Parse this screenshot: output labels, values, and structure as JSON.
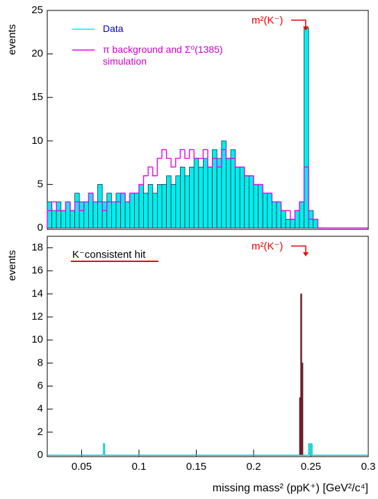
{
  "chart_data": [
    {
      "type": "histogram",
      "ylabel": "events",
      "annotation": "m²(K⁻)",
      "xlim": [
        0.02,
        0.3
      ],
      "ylim": [
        0,
        25
      ],
      "yticks": [
        0,
        5,
        10,
        15,
        20,
        25
      ],
      "bins": [
        0.02,
        0.024,
        0.028,
        0.032,
        0.036,
        0.04,
        0.044,
        0.048,
        0.052,
        0.056,
        0.06,
        0.064,
        0.068,
        0.072,
        0.076,
        0.08,
        0.084,
        0.088,
        0.092,
        0.096,
        0.1,
        0.104,
        0.108,
        0.112,
        0.116,
        0.12,
        0.124,
        0.128,
        0.132,
        0.136,
        0.14,
        0.144,
        0.148,
        0.152,
        0.156,
        0.16,
        0.164,
        0.168,
        0.172,
        0.176,
        0.18,
        0.184,
        0.188,
        0.192,
        0.196,
        0.2,
        0.204,
        0.208,
        0.212,
        0.216,
        0.22,
        0.224,
        0.228,
        0.232,
        0.236,
        0.24,
        0.244,
        0.248,
        0.252,
        0.256,
        0.26,
        0.264,
        0.268,
        0.272,
        0.276,
        0.28,
        0.284,
        0.288,
        0.292,
        0.296,
        0.3
      ],
      "series": [
        {
          "name": "Data",
          "color": "#00eeee",
          "filled": true,
          "values": [
            3,
            2,
            3,
            2,
            3,
            2,
            4,
            3,
            3,
            4,
            3,
            5,
            3,
            4,
            3,
            4,
            4,
            3,
            4,
            4,
            5,
            4,
            5,
            4,
            5,
            5,
            6,
            5,
            6,
            7,
            6,
            7,
            8,
            7,
            8,
            7,
            9,
            8,
            10,
            8,
            9,
            7,
            7,
            6,
            6,
            5,
            5,
            4,
            4,
            3,
            3,
            2,
            1,
            1,
            2,
            3,
            23,
            2,
            1,
            0,
            0,
            0,
            0,
            0,
            0,
            0,
            0,
            0,
            0,
            0
          ]
        },
        {
          "name": "π background and Σ⁰(1385) simulation",
          "color": "#ee00ee",
          "filled": false,
          "values": [
            2,
            3,
            2,
            2,
            3,
            2,
            3,
            2,
            3,
            4,
            3,
            3,
            2,
            3,
            3,
            3,
            4,
            3,
            4,
            4,
            5,
            6,
            7,
            6,
            8,
            9,
            8,
            7,
            8,
            9,
            8,
            9,
            8,
            8,
            9,
            7,
            8,
            7,
            9,
            8,
            8,
            7,
            7,
            6,
            6,
            5,
            5,
            4,
            4,
            3,
            3,
            2,
            2,
            1,
            2,
            3,
            7,
            1,
            1,
            0,
            0,
            0,
            0,
            0,
            0,
            0,
            0,
            0,
            0,
            0
          ]
        }
      ]
    },
    {
      "type": "histogram",
      "ylabel": "events",
      "annotation": "m²(K⁻)",
      "xlabel": "missing mass² (ppK⁺)  [GeV²/c⁴]",
      "xlim": [
        0.02,
        0.3
      ],
      "xticks": [
        0.05,
        0.1,
        0.15,
        0.2,
        0.25,
        0.3
      ],
      "ylim": [
        0,
        19
      ],
      "yticks": [
        0,
        2,
        4,
        6,
        8,
        10,
        12,
        14,
        16,
        18
      ],
      "bins": [
        0.02,
        0.069,
        0.07,
        0.24,
        0.241,
        0.242,
        0.243,
        0.248,
        0.249,
        0.25,
        0.251,
        0.3
      ],
      "series": [
        {
          "name": "K⁻consistent hit",
          "color": "#ee0000",
          "filled": true,
          "values": [
            0,
            0,
            0,
            5,
            14,
            8,
            0,
            0,
            0,
            0,
            0
          ]
        },
        {
          "color": "#00cccc",
          "filled": false,
          "values": [
            0,
            1,
            0,
            0,
            0,
            0,
            0,
            1,
            0,
            1,
            0
          ]
        }
      ]
    }
  ]
}
